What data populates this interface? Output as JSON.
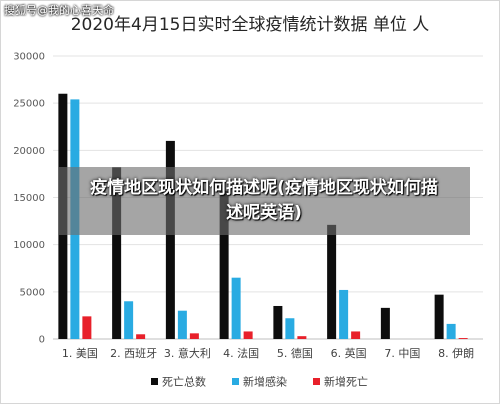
{
  "watermark": "搜狐号@我的心喜天命",
  "overlay_caption": "疫情地区现状如何描述呢(疫情地区现状如何描述呢英语)",
  "chart_data": {
    "type": "bar",
    "title": "2020年4月15日实时全球疫情统计数据 单位 人",
    "categories": [
      "1. 美国",
      "2. 西班牙",
      "3. 意大利",
      "4. 法国",
      "5. 德国",
      "6. 英国",
      "7. 中国",
      "8. 伊朗"
    ],
    "series": [
      {
        "name": "死亡总数",
        "color": "#0d0d0d",
        "values": [
          26000,
          18200,
          21000,
          15700,
          3500,
          12100,
          3300,
          4700
        ]
      },
      {
        "name": "新增感染",
        "color": "#29abe2",
        "values": [
          25400,
          4000,
          3000,
          6500,
          2200,
          5200,
          0,
          1600
        ]
      },
      {
        "name": "新增死亡",
        "color": "#e8202a",
        "values": [
          2400,
          500,
          600,
          800,
          300,
          800,
          0,
          100
        ]
      }
    ],
    "ylim": [
      0,
      30000
    ],
    "yticks": [
      0,
      5000,
      10000,
      15000,
      20000,
      25000,
      30000
    ],
    "grid": true,
    "legend_position": "bottom"
  }
}
